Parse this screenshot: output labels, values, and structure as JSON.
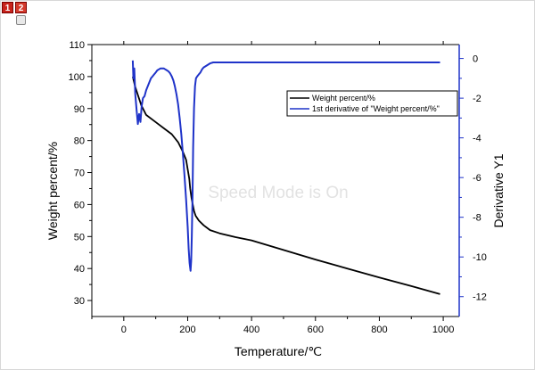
{
  "window": {
    "layer_tabs": [
      "1",
      "2"
    ],
    "lock_icon": "lock-icon",
    "watermark": "Speed Mode is On"
  },
  "chart_data": {
    "type": "line",
    "xlabel": "Temperature/℃",
    "ylabel_left": "Weight percent/%",
    "ylabel_right": "Derivative Y1",
    "xlim": [
      -100,
      1050
    ],
    "ylim_left": [
      25,
      110
    ],
    "ylim_right": [
      -13,
      0.7
    ],
    "x_ticks": [
      0,
      200,
      400,
      600,
      800,
      1000
    ],
    "y_left_ticks": [
      30,
      40,
      50,
      60,
      70,
      80,
      90,
      100,
      110
    ],
    "y_right_ticks": [
      0,
      -2,
      -4,
      -6,
      -8,
      -10,
      -12
    ],
    "legend": {
      "position": "top-right",
      "entries": [
        "Weight percent/%",
        "1st derivative of \"Weight percent/%\""
      ]
    },
    "series": [
      {
        "name": "Weight percent/%",
        "axis": "left",
        "color": "#000000",
        "x": [
          28,
          35,
          45,
          55,
          70,
          90,
          110,
          130,
          150,
          170,
          185,
          195,
          200,
          205,
          208,
          212,
          216,
          220,
          225,
          235,
          250,
          270,
          300,
          350,
          400,
          500,
          600,
          700,
          800,
          900,
          990
        ],
        "y": [
          100,
          97,
          94,
          91,
          88,
          86.5,
          85,
          83.5,
          82,
          79.5,
          76.5,
          74,
          71,
          68,
          65,
          62,
          60,
          58,
          56.5,
          55,
          53.5,
          52,
          51,
          49.8,
          48.8,
          45.8,
          42.8,
          40,
          37.2,
          34.5,
          32
        ]
      },
      {
        "name": "1st derivative of \"Weight percent/%\"",
        "axis": "right",
        "color": "#1f33c9",
        "x": [
          28,
          30,
          33,
          36,
          40,
          44,
          48,
          52,
          56,
          60,
          65,
          70,
          75,
          80,
          85,
          90,
          95,
          100,
          105,
          110,
          115,
          120,
          125,
          130,
          135,
          140,
          145,
          150,
          155,
          160,
          165,
          170,
          175,
          180,
          185,
          190,
          195,
          200,
          203,
          206,
          209,
          211,
          213,
          215,
          217,
          220,
          223,
          226,
          230,
          235,
          240,
          245,
          250,
          260,
          270,
          280,
          290,
          300,
          350,
          400,
          500,
          600,
          700,
          800,
          900,
          990
        ],
        "y": [
          -0.1,
          -1.0,
          -0.5,
          -1.8,
          -2.6,
          -3.3,
          -2.8,
          -3.2,
          -2.4,
          -2.0,
          -1.9,
          -1.6,
          -1.4,
          -1.2,
          -1.0,
          -0.9,
          -0.8,
          -0.7,
          -0.6,
          -0.55,
          -0.5,
          -0.5,
          -0.5,
          -0.55,
          -0.6,
          -0.65,
          -0.75,
          -0.9,
          -1.1,
          -1.4,
          -1.8,
          -2.3,
          -3.0,
          -3.8,
          -4.8,
          -5.9,
          -7.1,
          -8.5,
          -9.6,
          -10.3,
          -10.7,
          -10.2,
          -9.0,
          -7.0,
          -4.5,
          -2.5,
          -1.4,
          -1.0,
          -0.9,
          -0.8,
          -0.7,
          -0.55,
          -0.45,
          -0.35,
          -0.25,
          -0.2,
          -0.2,
          -0.2,
          -0.2,
          -0.2,
          -0.2,
          -0.2,
          -0.2,
          -0.2,
          -0.2,
          -0.2
        ]
      }
    ]
  }
}
